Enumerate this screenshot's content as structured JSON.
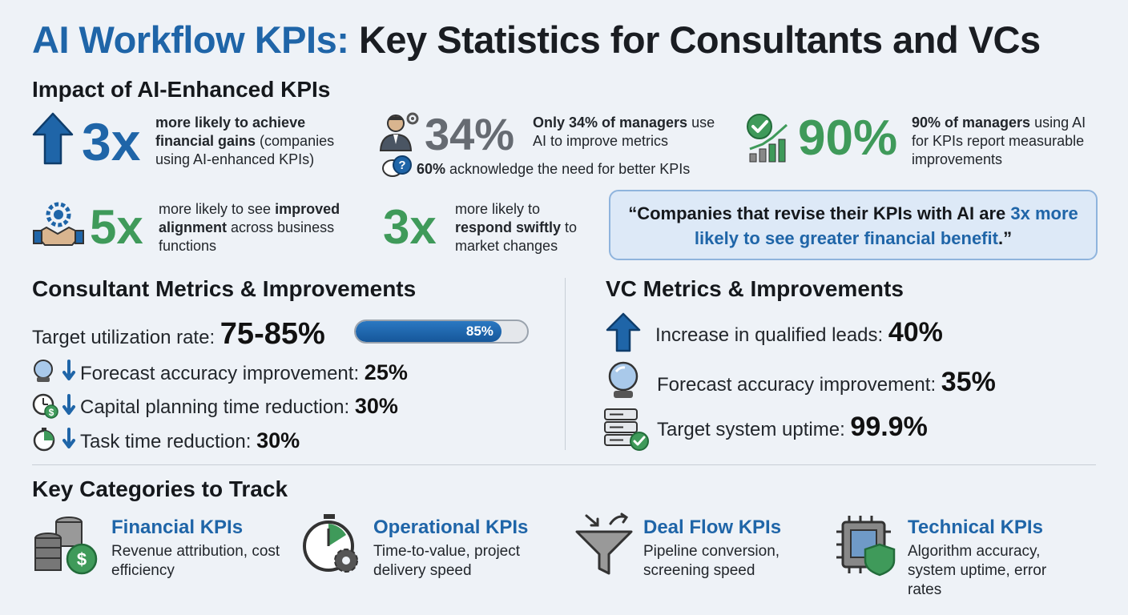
{
  "title": {
    "part1": "AI Workflow KPIs:",
    "part2": "Key Statistics for Consultants and VCs"
  },
  "impact": {
    "heading": "Impact of AI-Enhanced KPIs",
    "stat1": {
      "value": "3x",
      "bold": "more likely to achieve financial gains",
      "rest": " (companies using AI-enhanced KPIs)"
    },
    "stat2": {
      "value": "34%",
      "bold": "Only 34% of managers",
      "rest": " use AI to improve metrics",
      "note_bold": "60%",
      "note_rest": " acknowledge the need for better KPIs"
    },
    "stat3": {
      "value": "90%",
      "bold": "90% of managers",
      "rest": " using AI for KPIs report measurable improvements"
    },
    "stat4": {
      "value": "5x",
      "pre": "more likely to see ",
      "bold": "improved alignment",
      "rest": " across business functions"
    },
    "stat5": {
      "value": "3x",
      "pre": "more likely to ",
      "bold": "respond swiftly",
      "rest": " to market changes"
    },
    "quote": {
      "text": "“Companies that revise their KPIs with AI are ",
      "highlight": "3x more likely to see greater financial benefit",
      "end": ".”"
    }
  },
  "consultant": {
    "heading": "Consultant Metrics & Improvements",
    "utilization": {
      "label": "Target utilization rate:",
      "value": "75-85%",
      "bar_label": "85%",
      "bar_fraction": 0.85
    },
    "items": [
      {
        "label": "Forecast accuracy improvement:",
        "value": "25%"
      },
      {
        "label": "Capital planning time reduction:",
        "value": "30%"
      },
      {
        "label": "Task time reduction:",
        "value": "30%"
      }
    ]
  },
  "vc": {
    "heading": "VC Metrics & Improvements",
    "items": [
      {
        "label": "Increase in qualified leads:",
        "value": "40%"
      },
      {
        "label": "Forecast accuracy improvement:",
        "value": "35%"
      },
      {
        "label": "Target system uptime:",
        "value": "99.9%"
      }
    ]
  },
  "categories": {
    "heading": "Key Categories to Track",
    "items": [
      {
        "title": "Financial KPIs",
        "desc": "Revenue attribution, cost efficiency",
        "icon": "coins-dollar-icon"
      },
      {
        "title": "Operational KPIs",
        "desc": "Time-to-value, project delivery speed",
        "icon": "stopwatch-gear-icon"
      },
      {
        "title": "Deal Flow KPIs",
        "desc": "Pipeline conversion, screening speed",
        "icon": "funnel-icon"
      },
      {
        "title": "Technical KPIs",
        "desc": "Algorithm accuracy, system uptime, error rates",
        "icon": "chip-shield-icon"
      }
    ]
  },
  "colors": {
    "blue": "#1f65a8",
    "green": "#3f9a5a",
    "gray": "#666b72",
    "quote_bg": "#dde9f7"
  }
}
